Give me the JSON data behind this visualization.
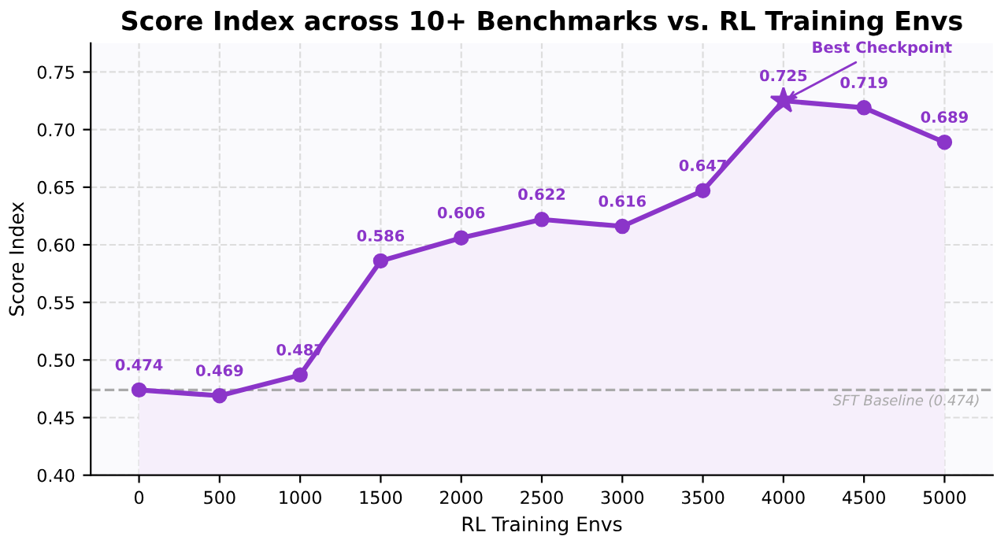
{
  "chart_data": {
    "type": "area",
    "title": "Score Index across 10+ Benchmarks vs. RL Training Envs",
    "xlabel": "RL Training Envs",
    "ylabel": "Score Index",
    "x": [
      0,
      500,
      1000,
      1500,
      2000,
      2500,
      3000,
      3500,
      4000,
      4500,
      5000
    ],
    "series": [
      {
        "color": "#8b35c9",
        "values": [
          0.474,
          0.469,
          0.487,
          0.586,
          0.606,
          0.622,
          0.616,
          0.647,
          0.725,
          0.719,
          0.689
        ],
        "marker": "circle"
      },
      {
        "type": "scatter",
        "color": "#8b35c9",
        "x": [
          4000
        ],
        "values": [
          0.725
        ],
        "marker": "star",
        "value_labels": [
          null
        ]
      }
    ],
    "data_labels": true,
    "xlim": [
      -300,
      5300
    ],
    "ylim": [
      0.4,
      0.775
    ],
    "xticks": [
      0,
      500,
      1000,
      1500,
      2000,
      2500,
      3000,
      3500,
      4000,
      4500,
      5000
    ],
    "yticks": [
      {
        "value": 0.4,
        "label": "0.40"
      },
      {
        "value": 0.45,
        "label": "0.45"
      },
      {
        "value": 0.5,
        "label": "0.50"
      },
      {
        "value": 0.55,
        "label": "0.55"
      },
      {
        "value": 0.6,
        "label": "0.60"
      },
      {
        "value": 0.65,
        "label": "0.65"
      },
      {
        "value": 0.7,
        "label": "0.70"
      },
      {
        "value": 0.75,
        "label": "0.75"
      }
    ],
    "ref_lines": [
      {
        "axis": "y",
        "value": 0.474,
        "label": "SFT Baseline (0.474)",
        "color": "#aaaaaa",
        "line_style": "dashed"
      }
    ],
    "annotations": [
      {
        "text": "Best Checkpoint",
        "x": 4000,
        "y": 0.725
      }
    ],
    "grid": true,
    "line_style": "solid"
  }
}
